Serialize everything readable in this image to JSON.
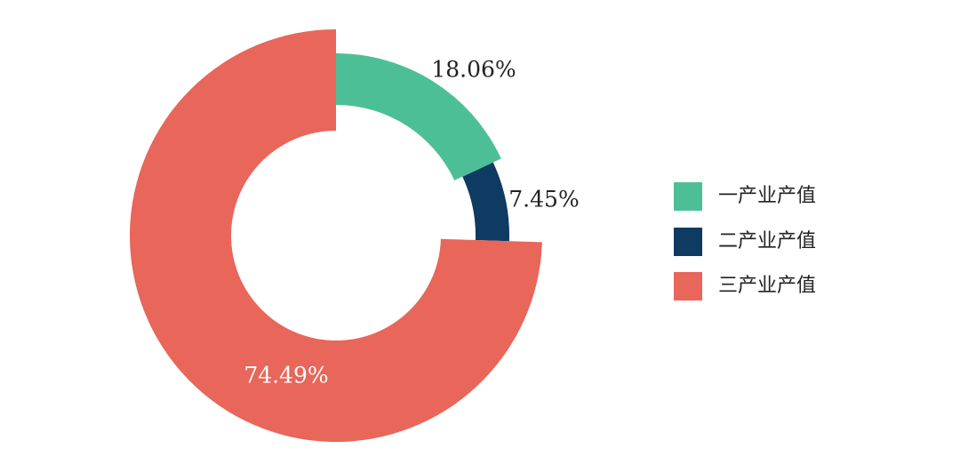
{
  "chart_data": {
    "type": "donut",
    "categories": [
      "一产业产值",
      "二产业产值",
      "三产业产值"
    ],
    "values": [
      18.06,
      7.45,
      74.49
    ],
    "value_labels": [
      "18.06%",
      "7.45%",
      "74.49%"
    ],
    "colors": [
      "#4dbf97",
      "#0f3a62",
      "#e8665a"
    ],
    "legend": "right"
  }
}
